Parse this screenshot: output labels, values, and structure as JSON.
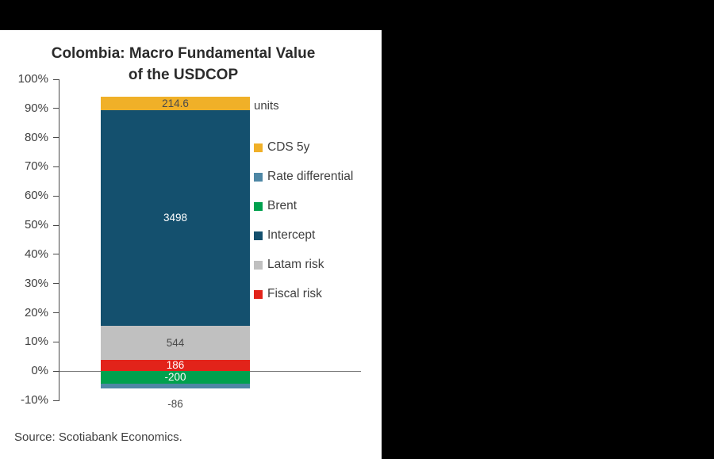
{
  "chart": {
    "title_line1": "Colombia: Macro Fundamental Value",
    "title_line2": "of the USDCOP",
    "units_label": "units",
    "source": "Source: Scotiabank Economics."
  },
  "chart_data": {
    "type": "bar",
    "subtype": "stacked-percentage-single-bar",
    "title": "Colombia: Macro Fundamental Value of the USDCOP",
    "xlabel": "",
    "ylabel": "",
    "ylim": [
      -10,
      100
    ],
    "ytick_labels": [
      "100%",
      "90%",
      "80%",
      "70%",
      "60%",
      "50%",
      "40%",
      "30%",
      "20%",
      "10%",
      "0%",
      "-10%"
    ],
    "grid": false,
    "legend_position": "right",
    "units": "units",
    "segments": [
      {
        "name": "CDS 5y",
        "value": 214.6,
        "color": "#F0B028",
        "label_color": "#4a4a4a",
        "label_outside": false
      },
      {
        "name": "Intercept",
        "value": 3498,
        "color": "#14506E",
        "label_color": "#ffffff",
        "label_outside": false
      },
      {
        "name": "Latam risk",
        "value": 544,
        "color": "#C0C0C0",
        "label_color": "#4a4a4a",
        "label_outside": false
      },
      {
        "name": "Fiscal risk",
        "value": 186,
        "color": "#E2231A",
        "label_color": "#ffffff",
        "label_outside": false
      },
      {
        "name": "Brent",
        "value": -200,
        "color": "#00A14E",
        "label_color": "#ffffff",
        "label_outside": false
      },
      {
        "name": "Rate differential",
        "value": -86,
        "color": "#4E87A5",
        "label_color": "#4a4a4a",
        "label_outside": true
      }
    ],
    "legend": [
      {
        "label": "CDS 5y",
        "color": "#F0B028"
      },
      {
        "label": "Rate differential",
        "color": "#4E87A5"
      },
      {
        "label": "Brent",
        "color": "#00A14E"
      },
      {
        "label": "Intercept",
        "color": "#14506E"
      },
      {
        "label": "Latam risk",
        "color": "#C0C0C0"
      },
      {
        "label": "Fiscal risk",
        "color": "#E2231A"
      }
    ]
  }
}
